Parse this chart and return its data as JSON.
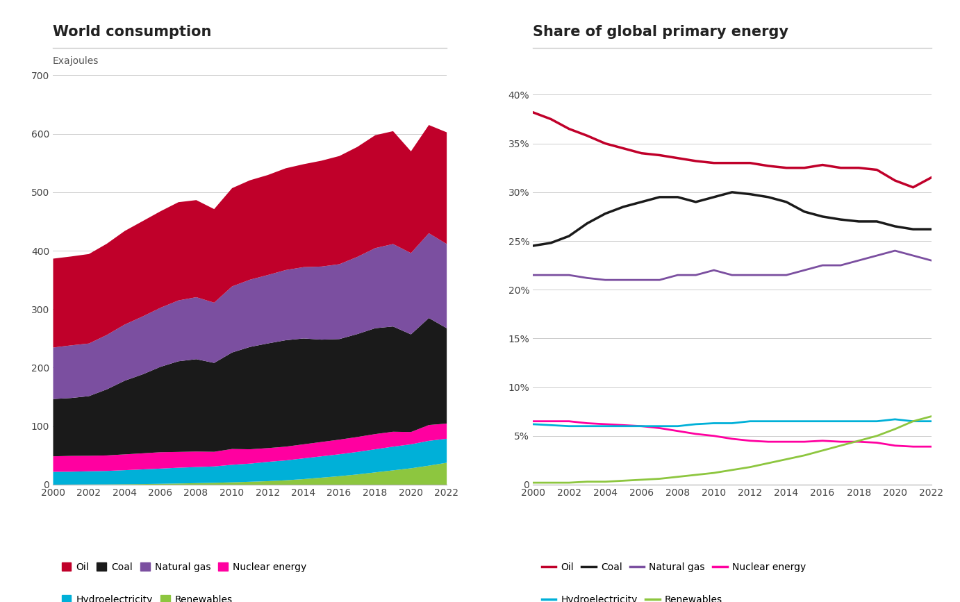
{
  "years": [
    2000,
    2001,
    2002,
    2003,
    2004,
    2005,
    2006,
    2007,
    2008,
    2009,
    2010,
    2011,
    2012,
    2013,
    2014,
    2015,
    2016,
    2017,
    2018,
    2019,
    2020,
    2021,
    2022
  ],
  "consumption": {
    "Renewables": [
      0.5,
      0.7,
      0.9,
      1.0,
      1.3,
      1.6,
      2.0,
      2.5,
      3.1,
      3.7,
      4.5,
      5.5,
      6.5,
      8.0,
      10.0,
      12.5,
      15.0,
      18.0,
      21.5,
      25.0,
      28.5,
      33.0,
      38.0
    ],
    "Hydroelectricity": [
      22.0,
      22.0,
      22.5,
      23.0,
      24.0,
      25.0,
      26.0,
      27.0,
      27.5,
      28.0,
      30.0,
      31.0,
      33.0,
      34.0,
      35.5,
      36.5,
      37.5,
      38.5,
      39.5,
      40.5,
      41.0,
      42.5,
      41.0
    ],
    "Nuclear energy": [
      26.5,
      27.0,
      26.5,
      26.5,
      27.0,
      27.5,
      28.0,
      27.0,
      26.5,
      25.0,
      27.0,
      24.5,
      23.5,
      23.5,
      24.0,
      24.5,
      25.0,
      25.5,
      26.0,
      25.5,
      21.0,
      27.0,
      26.0
    ],
    "Coal": [
      98.0,
      99.0,
      102.0,
      113.0,
      126.0,
      135.0,
      146.0,
      155.0,
      158.0,
      152.0,
      165.0,
      175.0,
      179.0,
      182.0,
      181.0,
      175.0,
      172.0,
      176.0,
      181.0,
      180.0,
      167.0,
      183.0,
      163.0
    ],
    "Natural gas": [
      88.0,
      90.0,
      90.0,
      93.0,
      96.0,
      99.0,
      101.0,
      104.0,
      106.0,
      103.0,
      113.0,
      115.0,
      117.0,
      120.0,
      122.0,
      125.0,
      128.0,
      132.0,
      137.0,
      141.0,
      139.0,
      145.0,
      144.0
    ],
    "Oil": [
      152.0,
      152.0,
      153.0,
      156.0,
      160.0,
      163.0,
      165.0,
      168.0,
      166.0,
      160.0,
      168.0,
      170.0,
      171.0,
      174.0,
      176.0,
      181.0,
      185.0,
      188.0,
      193.0,
      193.0,
      174.0,
      185.0,
      191.0
    ]
  },
  "shares": {
    "Oil": [
      38.2,
      37.5,
      36.5,
      35.8,
      35.0,
      34.5,
      34.0,
      33.8,
      33.5,
      33.2,
      33.0,
      33.0,
      33.0,
      32.7,
      32.5,
      32.5,
      32.8,
      32.5,
      32.5,
      32.3,
      31.2,
      30.5,
      31.5
    ],
    "Coal": [
      24.5,
      24.8,
      25.5,
      26.8,
      27.8,
      28.5,
      29.0,
      29.5,
      29.5,
      29.0,
      29.5,
      30.0,
      29.8,
      29.5,
      29.0,
      28.0,
      27.5,
      27.2,
      27.0,
      27.0,
      26.5,
      26.2,
      26.2
    ],
    "Natural gas": [
      21.5,
      21.5,
      21.5,
      21.2,
      21.0,
      21.0,
      21.0,
      21.0,
      21.5,
      21.5,
      22.0,
      21.5,
      21.5,
      21.5,
      21.5,
      22.0,
      22.5,
      22.5,
      23.0,
      23.5,
      24.0,
      23.5,
      23.0
    ],
    "Nuclear energy": [
      6.5,
      6.5,
      6.5,
      6.3,
      6.2,
      6.1,
      6.0,
      5.8,
      5.5,
      5.2,
      5.0,
      4.7,
      4.5,
      4.4,
      4.4,
      4.4,
      4.5,
      4.4,
      4.4,
      4.3,
      4.0,
      3.9,
      3.9
    ],
    "Hydroelectricity": [
      6.2,
      6.1,
      6.0,
      6.0,
      6.0,
      6.0,
      6.0,
      6.0,
      6.0,
      6.2,
      6.3,
      6.3,
      6.5,
      6.5,
      6.5,
      6.5,
      6.5,
      6.5,
      6.5,
      6.5,
      6.7,
      6.5,
      6.5
    ],
    "Renewables": [
      0.2,
      0.2,
      0.2,
      0.3,
      0.3,
      0.4,
      0.5,
      0.6,
      0.8,
      1.0,
      1.2,
      1.5,
      1.8,
      2.2,
      2.6,
      3.0,
      3.5,
      4.0,
      4.5,
      5.0,
      5.7,
      6.5,
      7.0
    ]
  },
  "colors": {
    "Oil": "#c0002a",
    "Coal": "#1a1a1a",
    "Natural gas": "#7b4fa0",
    "Nuclear energy": "#ff00a0",
    "Hydroelectricity": "#00b0d8",
    "Renewables": "#8dc63f"
  },
  "title_left": "World consumption",
  "title_right": "Share of global primary energy",
  "ylabel_left": "Exajoules",
  "yticks_left": [
    0,
    100,
    200,
    300,
    400,
    500,
    600,
    700
  ],
  "yticks_right": [
    0,
    5,
    10,
    15,
    20,
    25,
    30,
    35,
    40
  ],
  "xticks": [
    2000,
    2002,
    2004,
    2006,
    2008,
    2010,
    2012,
    2014,
    2016,
    2018,
    2020,
    2022
  ]
}
